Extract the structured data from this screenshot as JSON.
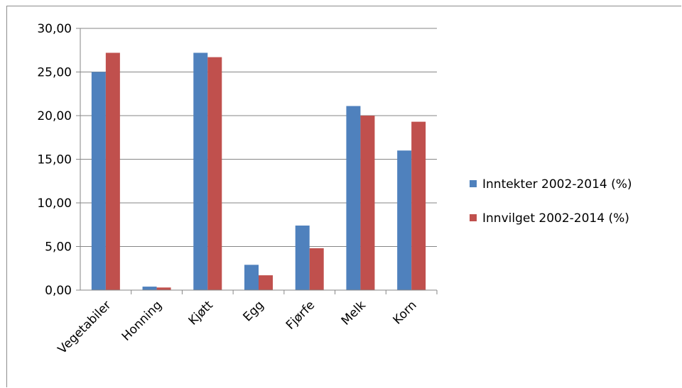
{
  "chart_data": {
    "type": "bar",
    "title": "",
    "xlabel": "",
    "ylabel": "",
    "ylim": [
      0,
      30
    ],
    "yticks": [
      "0,00",
      "5,00",
      "10,00",
      "15,00",
      "20,00",
      "25,00",
      "30,00"
    ],
    "grid": true,
    "legend_position": "right",
    "categories": [
      "Vegetabiler",
      "Honning",
      "Kjøtt",
      "Egg",
      "Fjørfe",
      "Melk",
      "Korn"
    ],
    "series": [
      {
        "name": "Inntekter 2002-2014 (%)",
        "color": "#4f81bd",
        "values": [
          25.0,
          0.4,
          27.2,
          2.9,
          7.4,
          21.1,
          16.0
        ]
      },
      {
        "name": "Innvilget 2002-2014 (%)",
        "color": "#c0504d",
        "values": [
          27.2,
          0.3,
          26.7,
          1.7,
          4.8,
          20.0,
          19.3
        ]
      }
    ]
  }
}
